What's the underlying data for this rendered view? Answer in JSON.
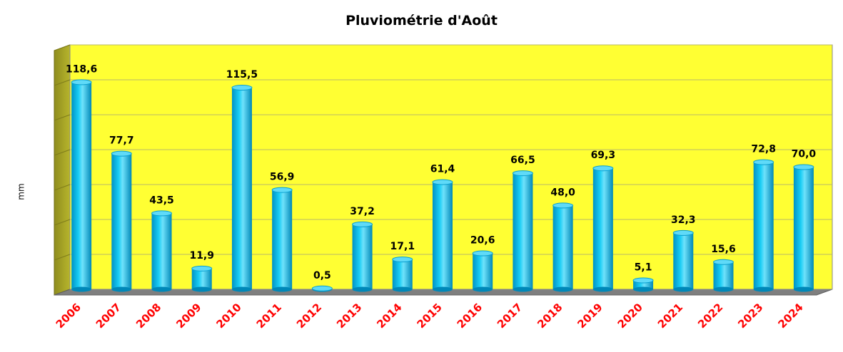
{
  "chart_data": {
    "type": "bar",
    "title": "Pluviométrie d'Août",
    "ylabel": "mm",
    "xlabel": "",
    "categories": [
      "2006",
      "2007",
      "2008",
      "2009",
      "2010",
      "2011",
      "2012",
      "2013",
      "2014",
      "2015",
      "2016",
      "2017",
      "2018",
      "2019",
      "2020",
      "2021",
      "2022",
      "2023",
      "2024"
    ],
    "values": [
      118.6,
      77.7,
      43.5,
      11.9,
      115.5,
      56.9,
      0.5,
      37.2,
      17.1,
      61.4,
      20.6,
      66.5,
      48.0,
      69.3,
      5.1,
      32.3,
      15.6,
      72.8,
      70.0
    ],
    "value_labels": [
      "118,6",
      "77,7",
      "43,5",
      "11,9",
      "115,5",
      "56,9",
      "0,5",
      "37,2",
      "17,1",
      "61,4",
      "20,6",
      "66,5",
      "48,0",
      "69,3",
      "5,1",
      "32,3",
      "15,6",
      "72,8",
      "70,0"
    ],
    "ylim": [
      0,
      140
    ],
    "grid": true,
    "legend": "none",
    "colors": {
      "plot_background": "#ffff33",
      "bar": "#00bfe8",
      "bar_dark": "#0088b8",
      "bar_light": "#7fe6ff",
      "side_wall": "#9c9a26",
      "floor": "#7f7f7f",
      "tick_label": "#ff0000"
    }
  }
}
